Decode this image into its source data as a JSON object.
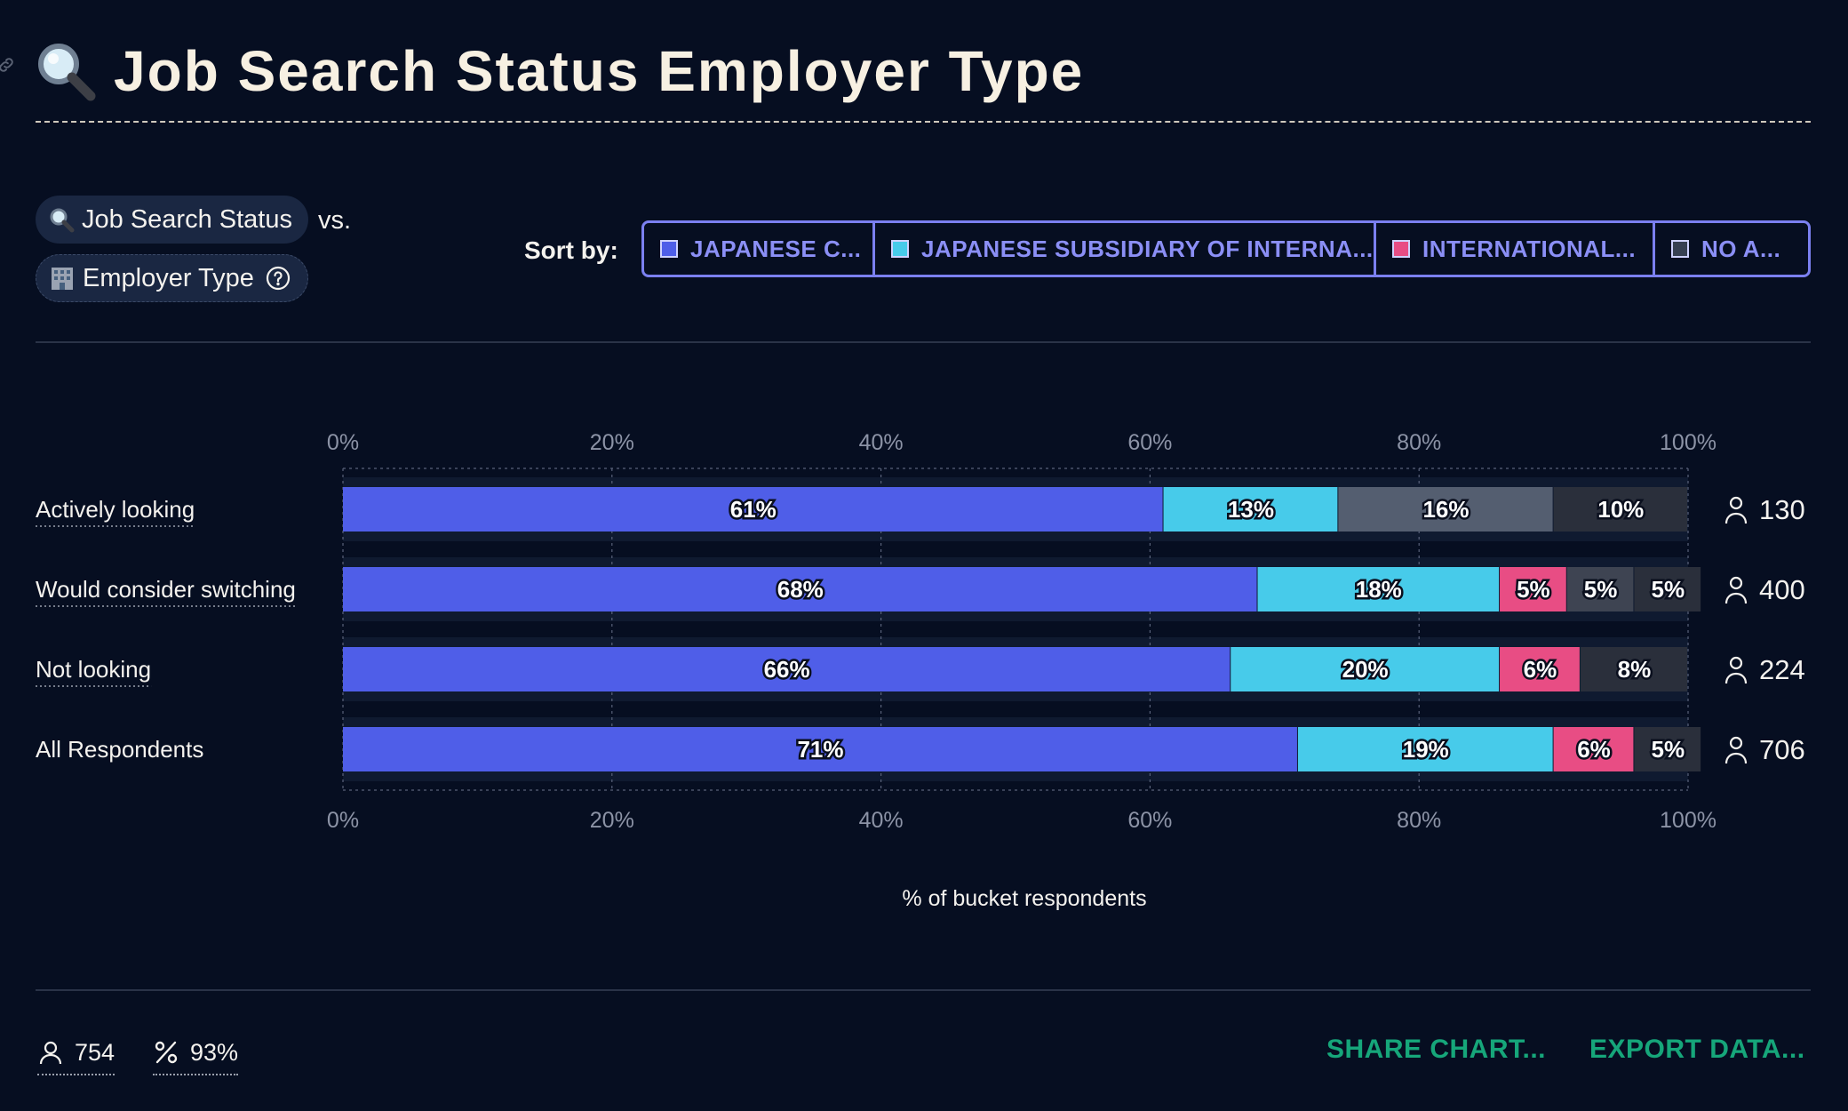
{
  "title": "Job Search Status Employer Type",
  "title_icon": "magnifying-glass-icon",
  "compare": {
    "pill1_label": "Job Search Status",
    "pill1_icon": "magnifying-glass-icon",
    "vs_label": "vs.",
    "pill2_label": "Employer Type",
    "pill2_icon": "office-building-icon"
  },
  "sort": {
    "label": "Sort by:",
    "options": [
      {
        "label": "JAPANESE C...",
        "color": "#4f5ee8"
      },
      {
        "label": "JAPANESE SUBSIDIARY OF INTERNA...",
        "color": "#47cbea"
      },
      {
        "label": "INTERNATIONAL...",
        "color": "#e84d84"
      },
      {
        "label": "NO A...",
        "color": "#374052"
      }
    ]
  },
  "chart_data": {
    "type": "bar",
    "orientation": "horizontal",
    "stacked": true,
    "xlim": [
      0,
      100
    ],
    "x_ticks": [
      "0%",
      "20%",
      "40%",
      "60%",
      "80%",
      "100%"
    ],
    "xlabel": "% of bucket respondents",
    "colors": {
      "japanese": "#4f5ee8",
      "subsidiary": "#47cbea",
      "international": "#e84d84",
      "slate": "#545e70",
      "gray": "#3e4452",
      "dark": "#2a2f3b"
    },
    "rows": [
      {
        "label": "Actively looking",
        "n": "130",
        "segments": [
          {
            "value": 61,
            "color": "japanese",
            "label": "61%"
          },
          {
            "value": 13,
            "color": "subsidiary",
            "label": "13%"
          },
          {
            "value": 16,
            "color": "slate",
            "label": "16%"
          },
          {
            "value": 10,
            "color": "dark",
            "label": "10%"
          }
        ]
      },
      {
        "label": "Would consider switching",
        "n": "400",
        "segments": [
          {
            "value": 68,
            "color": "japanese",
            "label": "68%"
          },
          {
            "value": 18,
            "color": "subsidiary",
            "label": "18%"
          },
          {
            "value": 5,
            "color": "international",
            "label": "5%"
          },
          {
            "value": 5,
            "color": "gray",
            "label": "5%"
          },
          {
            "value": 5,
            "color": "dark",
            "label": "5%"
          }
        ]
      },
      {
        "label": "Not looking",
        "n": "224",
        "segments": [
          {
            "value": 66,
            "color": "japanese",
            "label": "66%"
          },
          {
            "value": 20,
            "color": "subsidiary",
            "label": "20%"
          },
          {
            "value": 6,
            "color": "international",
            "label": "6%"
          },
          {
            "value": 8,
            "color": "dark",
            "label": "8%"
          }
        ]
      },
      {
        "label": "All Respondents",
        "n": "706",
        "segments": [
          {
            "value": 71,
            "color": "japanese",
            "label": "71%"
          },
          {
            "value": 19,
            "color": "subsidiary",
            "label": "19%"
          },
          {
            "value": 6,
            "color": "international",
            "label": "6%"
          },
          {
            "value": 5,
            "color": "dark",
            "label": "5%"
          }
        ]
      }
    ]
  },
  "footer": {
    "respondents": "754",
    "percent": "93%",
    "share_label": "SHARE CHART...",
    "export_label": "EXPORT DATA..."
  }
}
